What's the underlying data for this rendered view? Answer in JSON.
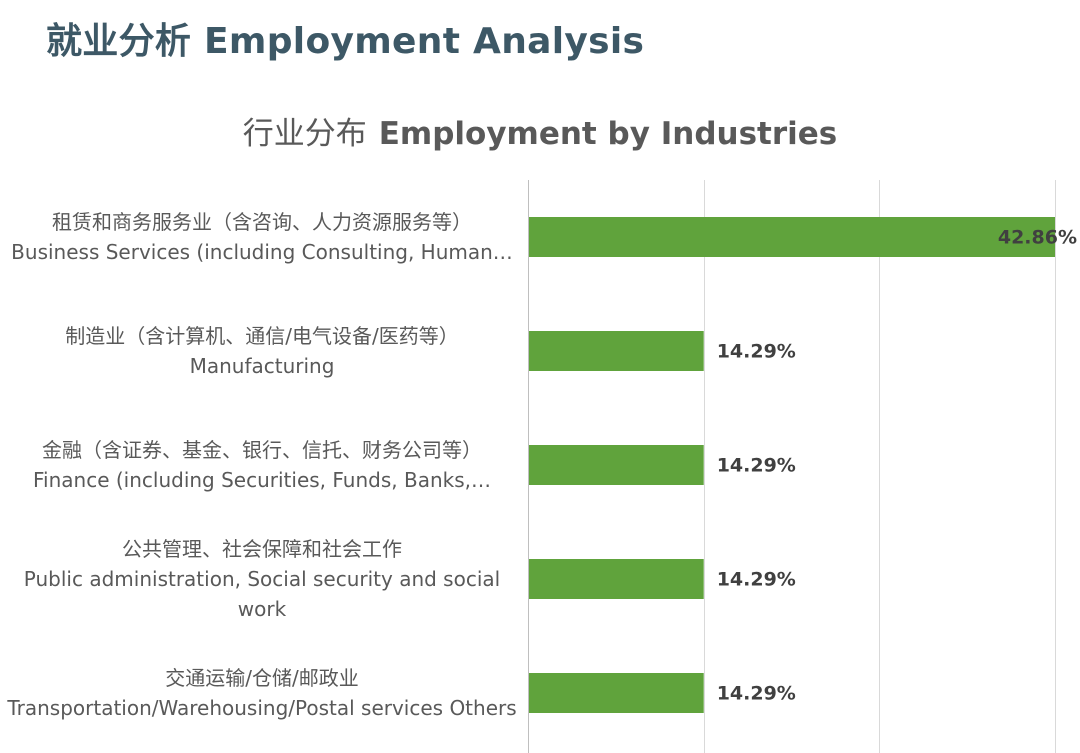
{
  "header": {
    "title": "就业分析  Employment Analysis"
  },
  "chart_data": {
    "type": "bar",
    "orientation": "horizontal",
    "title_cn": "行业分布",
    "title_en": "Employment by Industries",
    "categories": [
      {
        "cn": "租赁和商务服务业（含咨询、人力资源服务等）",
        "en": "Business Services (including Consulting, Human…"
      },
      {
        "cn": "制造业（含计算机、通信/电气设备/医药等）",
        "en": "Manufacturing"
      },
      {
        "cn": "金融（含证券、基金、银行、信托、财务公司等）",
        "en": "Finance (including Securities, Funds, Banks,…"
      },
      {
        "cn": "公共管理、社会保障和社会工作",
        "en": "Public administration, Social security and social work"
      },
      {
        "cn": "交通运输/仓储/邮政业",
        "en": "Transportation/Warehousing/Postal services Others"
      }
    ],
    "values": [
      42.86,
      14.29,
      14.29,
      14.29,
      14.29
    ],
    "value_labels": [
      "42.86%",
      "14.29%",
      "14.29%",
      "14.29%",
      "14.29%"
    ],
    "xlim": [
      0,
      42.86
    ],
    "grid": true,
    "legend": "none",
    "bar_color": "#60a33c"
  }
}
